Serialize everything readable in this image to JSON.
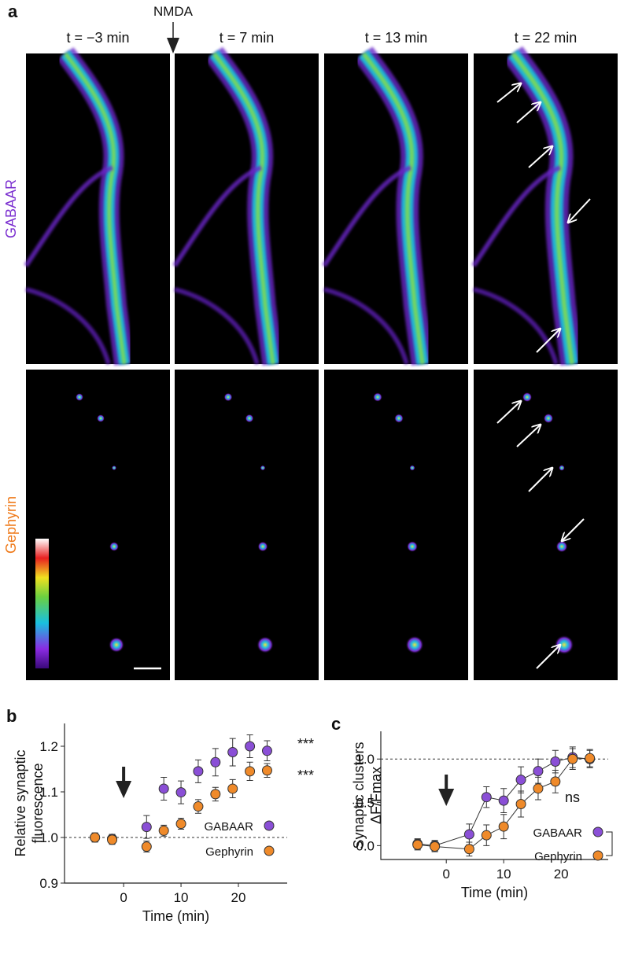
{
  "panel_a": {
    "label": "a",
    "treatment": "NMDA",
    "times": [
      "t = −3 min",
      "t = 7 min",
      "t = 13 min",
      "t = 22 min"
    ],
    "rows": [
      {
        "name": "GABAAR",
        "color": "#7b2fd0"
      },
      {
        "name": "Gephyrin",
        "color": "#ef7a1a"
      }
    ]
  },
  "chart_data": [
    {
      "type": "scatter",
      "panel": "b",
      "y_label": [
        "Relative synaptic",
        "fluorescence"
      ],
      "x_label": "Time (min)",
      "x": [
        -5,
        -2,
        4,
        7,
        10,
        13,
        16,
        19,
        22,
        25
      ],
      "series": [
        {
          "name": "GABAAR",
          "color": "#8a4fd6",
          "values": [
            1.0,
            0.997,
            1.023,
            1.107,
            1.099,
            1.145,
            1.165,
            1.187,
            1.2,
            1.19
          ],
          "errors": [
            0.01,
            0.01,
            0.025,
            0.025,
            0.025,
            0.025,
            0.03,
            0.03,
            0.025,
            0.022
          ]
        },
        {
          "name": "Gephyrin",
          "color": "#ef8a2a",
          "values": [
            1.0,
            0.995,
            0.98,
            1.015,
            1.03,
            1.068,
            1.095,
            1.107,
            1.145,
            1.147
          ],
          "errors": [
            0.01,
            0.01,
            0.012,
            0.012,
            0.012,
            0.015,
            0.015,
            0.02,
            0.02,
            0.015
          ]
        }
      ],
      "annotations": [
        "***",
        "***"
      ],
      "lines": false,
      "reference_line": 1,
      "arrow_x": 0,
      "xlim": [
        -10.3,
        28.5
      ],
      "xticks": [
        0,
        10,
        20
      ],
      "ylim": [
        0.9,
        1.25
      ],
      "yticks": [
        0.9,
        {
          "value": 1,
          "label": "1.0"
        },
        1.1,
        1.2
      ]
    },
    {
      "type": "line",
      "panel": "c",
      "y_label": [
        "Synaptic clusters",
        "ΔF/Fmax"
      ],
      "x_label": "Time (min)",
      "x": [
        -5,
        -2,
        4,
        7,
        10,
        13,
        16,
        19,
        22,
        25
      ],
      "series": [
        {
          "name": "GABAAR",
          "color": "#8a4fd6",
          "values": [
            0.02,
            0.0,
            0.13,
            0.56,
            0.52,
            0.76,
            0.86,
            0.97,
            1.02,
            1.0
          ],
          "errors": [
            0.06,
            0.06,
            0.12,
            0.12,
            0.14,
            0.15,
            0.14,
            0.13,
            0.12,
            0.1
          ]
        },
        {
          "name": "Gephyrin",
          "color": "#ef8a2a",
          "values": [
            0.01,
            -0.01,
            -0.04,
            0.12,
            0.22,
            0.48,
            0.66,
            0.74,
            1.0,
            1.01
          ],
          "errors": [
            0.06,
            0.06,
            0.08,
            0.12,
            0.14,
            0.15,
            0.13,
            0.13,
            0.12,
            0.1
          ]
        }
      ],
      "annotations": [
        "ns"
      ],
      "lines": true,
      "reference_line": 1,
      "arrow_x": 0,
      "xlim": [
        -11.4,
        28.2
      ],
      "xticks": [
        0,
        10,
        20
      ],
      "ylim": [
        -0.16,
        1.32
      ],
      "yticks": [
        {
          "value": 0,
          "label": "0.0"
        },
        0.5,
        {
          "value": 1,
          "label": "1.0"
        }
      ]
    }
  ]
}
